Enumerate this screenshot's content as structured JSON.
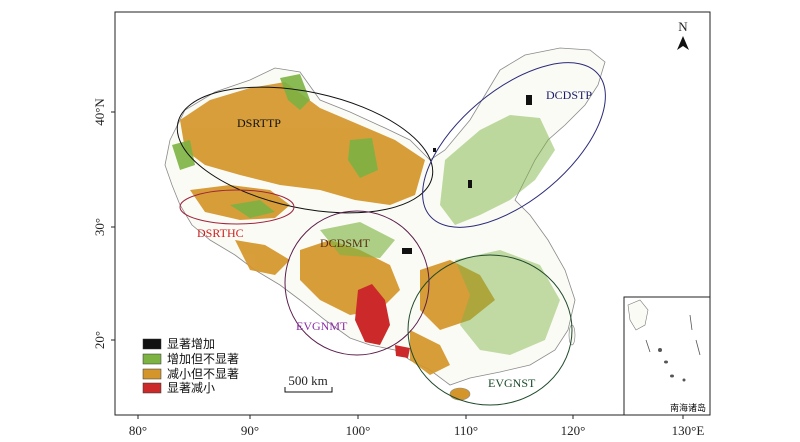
{
  "axes": {
    "x_ticks": [
      "80°",
      "90°",
      "100°",
      "110°",
      "120°",
      "130°E"
    ],
    "y_ticks": [
      "40°N",
      "30°",
      "20°"
    ]
  },
  "north_arrow": {
    "label": "N",
    "icon": "north-arrow-icon"
  },
  "regions": [
    {
      "id": "dsrttp",
      "name": "DSRTTP",
      "color": "#111111"
    },
    {
      "id": "dsrthc",
      "name": "DSRTHC",
      "color": "#cc1f1f"
    },
    {
      "id": "dcdsmt",
      "name": "DCDSMT",
      "color": "#5a2d10"
    },
    {
      "id": "evgnmt",
      "name": "EVGNMT",
      "color": "#8b2fa6"
    },
    {
      "id": "dcdstp",
      "name": "DCDSTP",
      "color": "#1a1a6a"
    },
    {
      "id": "evgnst",
      "name": "EVGNST",
      "color": "#1a4a2a"
    }
  ],
  "legend": {
    "items": [
      {
        "label": "显著增加",
        "color": "#111111"
      },
      {
        "label": "增加但不显著",
        "color": "#7cb342"
      },
      {
        "label": "减小但不显著",
        "color": "#d4962a"
      },
      {
        "label": "显著减小",
        "color": "#cc2a2a"
      }
    ]
  },
  "scale_bar": {
    "label": "500 km"
  },
  "inset": {
    "label": "南海诸岛"
  }
}
